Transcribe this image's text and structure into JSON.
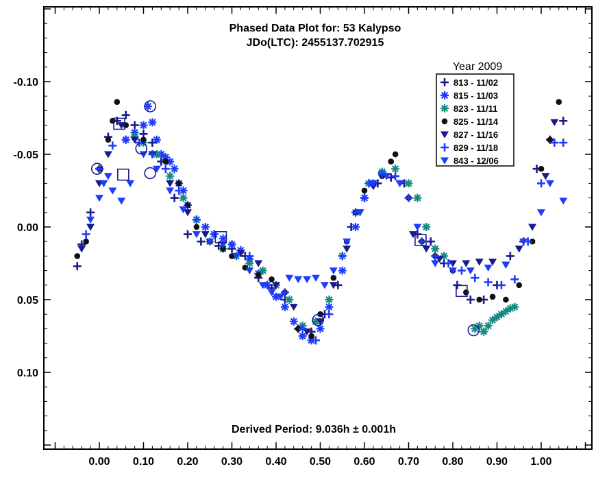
{
  "chart_data": {
    "type": "scatter",
    "title": "Phased Data Plot for: 53 Kalypso",
    "subtitle": "JDo(LTC): 2455137.702915",
    "footer": "Derived Period: 9.036h ± 0.001h",
    "xlim": [
      -0.12,
      1.12
    ],
    "ylim": [
      0.15,
      -0.15
    ],
    "y_inverted": true,
    "x_ticks": [
      "0.00",
      "0.10",
      "0.20",
      "0.30",
      "0.40",
      "0.50",
      "0.60",
      "0.70",
      "0.80",
      "0.90",
      "1.00"
    ],
    "x_tick_values": [
      0,
      0.1,
      0.2,
      0.3,
      0.4,
      0.5,
      0.6,
      0.7,
      0.8,
      0.9,
      1.0
    ],
    "y_ticks": [
      "-0.10",
      "-0.05",
      "0.00",
      "0.05",
      "0.10"
    ],
    "y_tick_values": [
      -0.1,
      -0.05,
      0.0,
      0.05,
      0.1
    ],
    "legend_title": "Year 2009",
    "legend_position": "top-right",
    "series": [
      {
        "name": "813 - 11/02",
        "marker": "plus",
        "color": "#1a1a8c",
        "x": [
          -0.05,
          -0.04,
          -0.02,
          0.0,
          0.02,
          0.04,
          0.06,
          0.08,
          0.1,
          0.12,
          0.14,
          0.17,
          0.2,
          0.23,
          0.27,
          0.3,
          0.33,
          0.36,
          0.39,
          0.42,
          0.45,
          0.48,
          0.51,
          0.54,
          0.57,
          0.6,
          0.63,
          0.66,
          0.69,
          0.72,
          0.75,
          0.78,
          0.81,
          0.84,
          0.87,
          0.9,
          0.93,
          0.96,
          0.99,
          1.02,
          1.05
        ],
        "y": [
          0.027,
          0.012,
          -0.01,
          -0.04,
          -0.062,
          -0.073,
          -0.077,
          -0.07,
          -0.064,
          -0.058,
          -0.045,
          -0.02,
          0.005,
          0.01,
          0.013,
          0.015,
          0.02,
          0.035,
          0.042,
          0.05,
          0.07,
          0.072,
          0.06,
          0.04,
          0.0,
          -0.02,
          -0.03,
          -0.034,
          -0.03,
          0.005,
          0.01,
          0.025,
          0.04,
          0.05,
          0.05,
          0.04,
          0.02,
          0.01,
          -0.04,
          -0.06,
          -0.073
        ]
      },
      {
        "name": "815 - 11/03",
        "marker": "asterisk",
        "color": "#1e3cff",
        "x": [
          0.06,
          0.08,
          0.1,
          0.11,
          0.12,
          0.13,
          0.14,
          0.15,
          0.16,
          0.17,
          0.18,
          0.19,
          0.2,
          0.22,
          0.24,
          0.26,
          0.28,
          0.3,
          0.32,
          0.34,
          0.36,
          0.38,
          0.4,
          0.42,
          0.44,
          0.46,
          0.48,
          0.5,
          0.52,
          0.55,
          0.58,
          0.6,
          0.62,
          0.64
        ],
        "y": [
          -0.06,
          -0.065,
          -0.07,
          -0.083,
          -0.072,
          -0.06,
          -0.05,
          -0.048,
          -0.045,
          -0.04,
          -0.03,
          -0.025,
          -0.015,
          -0.005,
          0.0,
          0.005,
          0.008,
          0.012,
          0.016,
          0.022,
          0.032,
          0.04,
          0.048,
          0.055,
          0.065,
          0.075,
          0.078,
          0.07,
          0.055,
          0.03,
          0.0,
          -0.02,
          -0.03,
          -0.037
        ]
      },
      {
        "name": "823 - 11/11",
        "marker": "asterisk",
        "color": "#138a80",
        "x": [
          0.08,
          0.1,
          0.13,
          0.16,
          0.19,
          0.22,
          0.25,
          0.28,
          0.31,
          0.34,
          0.37,
          0.4,
          0.43,
          0.46,
          0.49,
          0.52,
          0.55,
          0.58,
          0.61,
          0.64,
          0.67,
          0.7,
          0.72,
          0.74,
          0.76,
          0.78,
          0.85,
          0.86,
          0.87,
          0.88,
          0.89,
          0.9,
          0.91,
          0.92,
          0.93,
          0.94
        ],
        "y": [
          -0.062,
          -0.058,
          -0.05,
          -0.035,
          -0.02,
          -0.005,
          0.01,
          0.015,
          0.02,
          0.025,
          0.03,
          0.04,
          0.05,
          0.068,
          0.065,
          0.05,
          0.02,
          -0.01,
          -0.03,
          -0.038,
          -0.04,
          -0.03,
          -0.02,
          0.0,
          0.015,
          0.02,
          0.07,
          0.068,
          0.072,
          0.068,
          0.064,
          0.062,
          0.06,
          0.058,
          0.056,
          0.055
        ]
      },
      {
        "name": "825 - 11/14",
        "marker": "dot",
        "color": "#111111",
        "x": [
          -0.05,
          -0.03,
          0.0,
          0.02,
          0.03,
          0.04,
          0.06,
          0.1,
          0.15,
          0.18,
          0.2,
          0.22,
          0.25,
          0.28,
          0.3,
          0.33,
          0.36,
          0.39,
          0.42,
          0.45,
          0.48,
          0.5,
          0.53,
          0.56,
          0.58,
          0.6,
          0.62,
          0.64,
          0.66,
          0.67,
          0.7,
          0.73,
          0.76,
          0.8,
          0.83,
          0.86,
          0.89,
          0.92,
          0.95,
          0.98,
          1.0,
          1.02,
          1.04
        ],
        "y": [
          0.02,
          0.01,
          -0.04,
          -0.06,
          -0.073,
          -0.086,
          -0.07,
          -0.06,
          -0.045,
          -0.03,
          -0.015,
          0.0,
          0.01,
          0.015,
          0.02,
          0.028,
          0.033,
          0.036,
          0.045,
          0.07,
          0.075,
          0.06,
          0.035,
          0.01,
          -0.01,
          -0.025,
          -0.03,
          -0.035,
          -0.045,
          -0.05,
          -0.02,
          0.01,
          0.02,
          0.03,
          0.045,
          0.05,
          0.048,
          0.05,
          0.04,
          0.01,
          -0.04,
          -0.06,
          -0.086
        ]
      },
      {
        "name": "827 - 11/16",
        "marker": "triangle",
        "color": "#1a1a8c",
        "x": [
          -0.04,
          -0.02,
          0.0,
          0.02,
          0.05,
          0.08,
          0.12,
          0.16,
          0.2,
          0.24,
          0.28,
          0.32,
          0.36,
          0.4,
          0.44,
          0.47,
          0.5,
          0.53,
          0.56,
          0.59,
          0.62,
          0.65,
          0.68,
          0.71,
          0.74,
          0.77,
          0.8,
          0.83,
          0.86,
          0.89,
          0.92,
          0.95,
          0.98,
          1.01,
          1.03
        ],
        "y": [
          0.015,
          0.0,
          -0.03,
          -0.05,
          -0.07,
          -0.06,
          -0.05,
          -0.03,
          -0.01,
          0.005,
          0.012,
          0.018,
          0.025,
          0.04,
          0.055,
          0.072,
          0.065,
          0.04,
          0.015,
          -0.01,
          -0.028,
          -0.035,
          -0.03,
          0.005,
          0.015,
          0.022,
          0.025,
          0.025,
          0.024,
          0.024,
          0.026,
          0.015,
          0.0,
          -0.035,
          -0.072
        ]
      },
      {
        "name": "829 - 11/18",
        "marker": "plus",
        "color": "#1e3cff",
        "x": [
          -0.03,
          0.0,
          0.03,
          0.06,
          0.09,
          0.12,
          0.15,
          0.18,
          0.22,
          0.26,
          0.3,
          0.34,
          0.38,
          0.42,
          0.46,
          0.49,
          0.52,
          0.55,
          0.58,
          0.61,
          0.64,
          0.67,
          0.7,
          0.73,
          0.76,
          0.79,
          0.82,
          0.85,
          0.88,
          0.91,
          0.94,
          0.97,
          1.0,
          1.03,
          1.05
        ],
        "y": [
          0.005,
          -0.04,
          -0.056,
          -0.06,
          -0.058,
          -0.05,
          -0.04,
          -0.025,
          -0.005,
          0.005,
          0.012,
          0.02,
          0.04,
          0.045,
          0.07,
          0.078,
          0.06,
          0.02,
          -0.01,
          -0.03,
          -0.036,
          -0.035,
          -0.02,
          0.01,
          0.02,
          0.025,
          0.03,
          0.035,
          0.038,
          0.04,
          0.036,
          0.01,
          -0.03,
          -0.058,
          -0.058
        ]
      },
      {
        "name": "843 - 12/06",
        "marker": "triangle",
        "color": "#1e3cff",
        "x": [
          -0.02,
          0.0,
          0.01,
          0.02,
          0.03,
          0.05,
          0.07,
          0.1,
          0.13,
          0.16,
          0.19,
          0.22,
          0.25,
          0.28,
          0.31,
          0.34,
          0.37,
          0.39,
          0.41,
          0.43,
          0.45,
          0.47,
          0.49,
          0.51,
          0.53,
          0.56,
          0.59,
          0.62,
          0.65,
          0.68,
          0.72,
          0.76,
          0.8,
          0.84,
          0.88,
          0.92,
          0.96,
          1.0,
          1.02,
          1.05
        ],
        "y": [
          -0.005,
          -0.02,
          -0.03,
          -0.035,
          -0.025,
          -0.018,
          -0.03,
          -0.05,
          -0.04,
          -0.025,
          -0.012,
          0.005,
          0.01,
          0.012,
          0.02,
          0.03,
          0.04,
          0.045,
          0.048,
          0.035,
          0.036,
          0.036,
          0.035,
          0.04,
          0.03,
          0.01,
          -0.01,
          -0.03,
          -0.035,
          -0.03,
          0.0,
          0.025,
          0.03,
          0.03,
          0.028,
          0.026,
          0.01,
          -0.01,
          -0.03,
          -0.018
        ]
      }
    ],
    "annotations": [
      {
        "type": "open-circle",
        "x": 0.115,
        "y": -0.083
      },
      {
        "type": "open-circle",
        "x": -0.005,
        "y": -0.04
      },
      {
        "type": "open-circle",
        "x": 0.095,
        "y": -0.054
      },
      {
        "type": "open-circle",
        "x": 0.115,
        "y": -0.037
      },
      {
        "type": "open-circle",
        "x": 0.847,
        "y": 0.071
      },
      {
        "type": "open-circle",
        "x": 0.495,
        "y": 0.064
      },
      {
        "type": "open-square",
        "x": 0.045,
        "y": -0.071
      },
      {
        "type": "open-square",
        "x": 0.054,
        "y": -0.036
      },
      {
        "type": "open-square",
        "x": 0.727,
        "y": 0.009
      },
      {
        "type": "open-square",
        "x": 0.82,
        "y": 0.044
      },
      {
        "type": "open-square",
        "x": 0.275,
        "y": 0.007
      }
    ]
  }
}
